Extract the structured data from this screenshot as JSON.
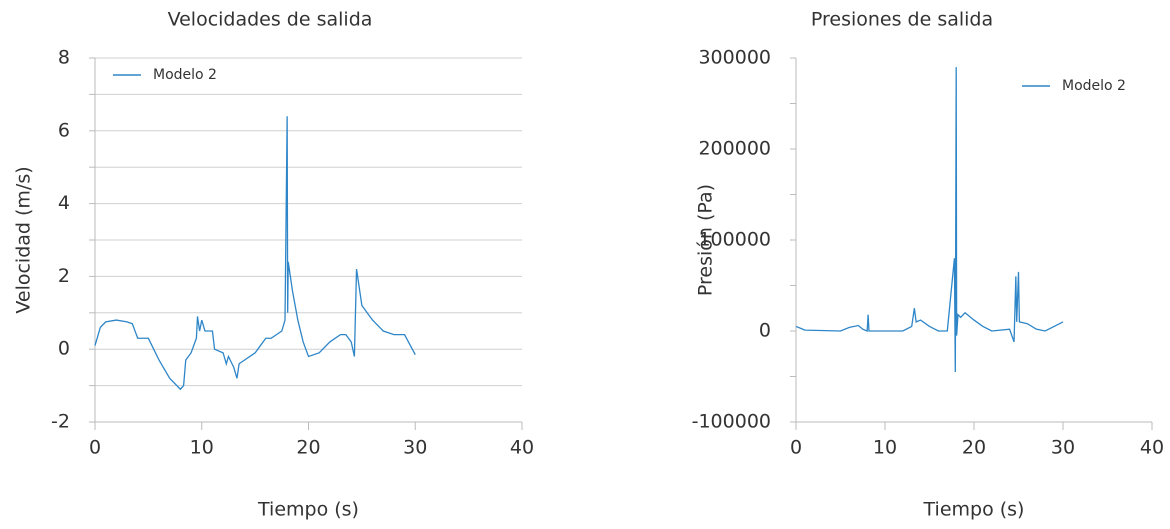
{
  "chart_data": [
    {
      "type": "line",
      "title": "Velocidades de salida",
      "xlabel": "Tiempo (s)",
      "ylabel": "Velocidad (m/s)",
      "xlim": [
        0,
        40
      ],
      "xticks": [
        0,
        10,
        20,
        30,
        40
      ],
      "ylim": [
        -2,
        8
      ],
      "yticks": [
        -2,
        0,
        2,
        4,
        6,
        8
      ],
      "minor_yticks": [
        -1,
        1,
        3,
        5,
        7
      ],
      "grid": true,
      "legend": "upper left",
      "x": [
        0,
        0.5,
        1,
        2,
        3,
        3.5,
        4,
        5,
        5.5,
        6,
        7,
        8,
        8.3,
        8.5,
        9,
        9.5,
        9.6,
        9.8,
        10,
        10.3,
        11,
        11.2,
        12,
        12.3,
        12.5,
        13,
        13.3,
        13.5,
        14,
        15,
        15.5,
        16,
        16.5,
        17,
        17.5,
        17.8,
        18,
        18.05,
        18.1,
        18.5,
        19,
        19.5,
        20,
        21,
        22,
        23,
        23.5,
        24,
        24.3,
        24.5,
        25,
        26,
        27,
        28,
        29,
        30
      ],
      "series": [
        {
          "name": "Modelo 2",
          "color": "#2e86c8",
          "values": [
            0.1,
            0.6,
            0.75,
            0.8,
            0.75,
            0.7,
            0.3,
            0.3,
            0,
            -0.3,
            -0.8,
            -1.1,
            -1.0,
            -0.3,
            -0.1,
            0.3,
            0.9,
            0.5,
            0.8,
            0.5,
            0.5,
            0,
            -0.1,
            -0.4,
            -0.2,
            -0.5,
            -0.8,
            -0.4,
            -0.3,
            -0.1,
            0.1,
            0.3,
            0.3,
            0.4,
            0.5,
            0.8,
            6.4,
            1.0,
            2.4,
            1.6,
            0.8,
            0.2,
            -0.2,
            -0.1,
            0.2,
            0.4,
            0.4,
            0.2,
            -0.2,
            2.2,
            1.2,
            0.8,
            0.5,
            0.4,
            0.4,
            -0.15
          ]
        }
      ]
    },
    {
      "type": "line",
      "title": "Presiones de salida",
      "xlabel": "Tiempo (s)",
      "ylabel": "Presión (Pa)",
      "xlim": [
        0,
        40
      ],
      "xticks": [
        0,
        10,
        20,
        30,
        40
      ],
      "ylim": [
        -100000,
        300000
      ],
      "yticks": [
        -100000,
        0,
        100000,
        200000,
        300000
      ],
      "minor_yticks": [
        -50000,
        50000,
        150000,
        250000
      ],
      "grid": false,
      "legend": "upper right",
      "x": [
        0,
        0.5,
        1,
        5,
        6,
        7,
        7.5,
        8,
        8.1,
        8.2,
        12,
        13,
        13.3,
        13.5,
        14,
        15,
        16,
        17,
        17.8,
        17.9,
        18,
        18.05,
        18.2,
        18.5,
        19,
        20,
        21,
        22,
        24,
        24.5,
        24.7,
        24.8,
        25,
        25.1,
        26,
        27,
        28,
        29,
        30
      ],
      "series": [
        {
          "name": "Modelo 2",
          "color": "#2e86c8",
          "values": [
            5000,
            3000,
            1000,
            0,
            4000,
            6000,
            2000,
            0,
            18000,
            0,
            0,
            5000,
            25000,
            10000,
            12000,
            5000,
            0,
            0,
            80000,
            -45000,
            290000,
            -5000,
            18000,
            15000,
            20000,
            12000,
            5000,
            0,
            2000,
            -12000,
            60000,
            10000,
            65000,
            10000,
            8000,
            2000,
            0,
            5000,
            10000
          ]
        }
      ]
    }
  ]
}
